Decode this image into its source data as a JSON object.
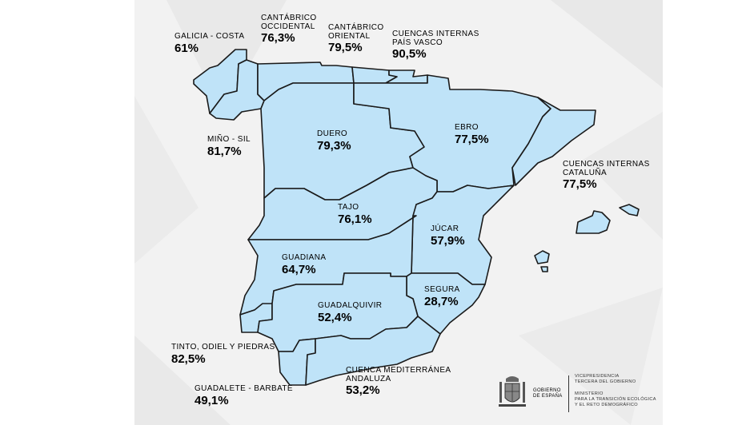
{
  "basins": [
    {
      "id": "galicia-costa",
      "name": "GALICIA - COSTA",
      "value": "61%"
    },
    {
      "id": "cantabrico-occidental",
      "name_lines": [
        "CANTÁBRICO",
        "OCCIDENTAL"
      ],
      "value": "76,3%"
    },
    {
      "id": "cantabrico-oriental",
      "name_lines": [
        "CANTÁBRICO",
        "ORIENTAL"
      ],
      "value": "79,5%"
    },
    {
      "id": "pais-vasco",
      "name_lines": [
        "CUENCAS INTERNAS",
        "PAÍS VASCO"
      ],
      "value": "90,5%"
    },
    {
      "id": "mino-sil",
      "name": "MIÑO - SIL",
      "value": "81,7%"
    },
    {
      "id": "duero",
      "name": "DUERO",
      "value": "79,3%"
    },
    {
      "id": "ebro",
      "name": "EBRO",
      "value": "77,5%"
    },
    {
      "id": "cataluna",
      "name_lines": [
        "CUENCAS INTERNAS",
        "CATALUÑA"
      ],
      "value": "77,5%"
    },
    {
      "id": "tajo",
      "name": "TAJO",
      "value": "76,1%"
    },
    {
      "id": "jucar",
      "name": "JÚCAR",
      "value": "57,9%"
    },
    {
      "id": "guadiana",
      "name": "GUADIANA",
      "value": "64,7%"
    },
    {
      "id": "segura",
      "name": "SEGURA",
      "value": "28,7%"
    },
    {
      "id": "guadalquivir",
      "name": "GUADALQUIVIR",
      "value": "52,4%"
    },
    {
      "id": "tinto-odiel-piedras",
      "name": "TINTO, ODIEL Y PIEDRAS",
      "value": "82,5%"
    },
    {
      "id": "guadalete-barbate",
      "name": "GUADALETE - BARBATE",
      "value": "49,1%"
    },
    {
      "id": "mediterranea-andaluza",
      "name_lines": [
        "CUENCA MEDITERRÁNEA",
        "ANDALUZA"
      ],
      "value": "53,2%"
    }
  ],
  "footer": {
    "government": [
      "GOBIERNO",
      "DE ESPAÑA"
    ],
    "vicepresidency": [
      "VICEPRESIDENCIA",
      "TERCERA DEL GOBIERNO"
    ],
    "ministry": [
      "MINISTERIO",
      "PARA LA TRANSICIÓN ECOLÓGICA",
      "Y EL RETO DEMOGRÁFICO"
    ],
    "shield_icon": "coat-of-arms-icon"
  },
  "colors": {
    "land": "#bfe3f8",
    "border": "#1a1a1a",
    "background": "#f2f2f2"
  }
}
